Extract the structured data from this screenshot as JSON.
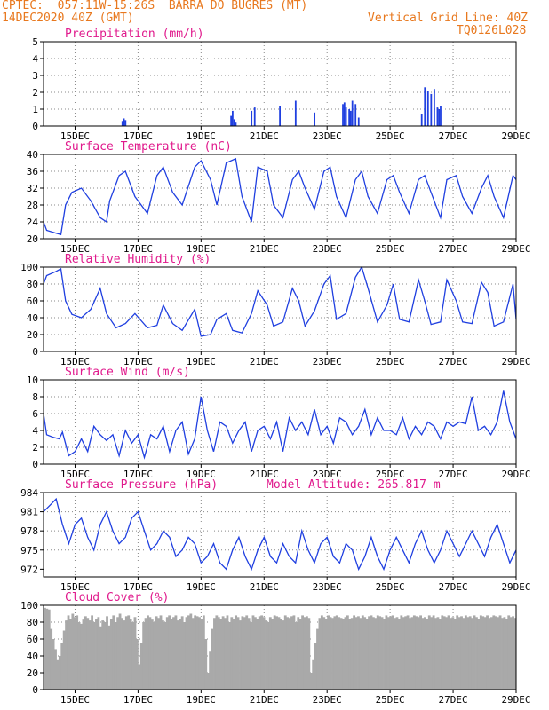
{
  "header": {
    "line1": "CPTEC:  057:11W-15:26S  BARRA DO BUGRES (MT)",
    "line2_left": "14DEC2020 40Z (GMT)",
    "line2_right": "Vertical Grid Line: 40Z",
    "line3_right": "TQ0126L028"
  },
  "colors": {
    "header": "#e8781e",
    "title": "#e0198c",
    "series": "#1f3fe0",
    "cloud": "#a9a9a9",
    "grid": "#888888"
  },
  "x_axis": {
    "range": [
      14.0,
      29.0
    ],
    "tick_positions": [
      15,
      17,
      19,
      21,
      23,
      25,
      27,
      29
    ],
    "tick_labels": [
      "15DEC",
      "17DEC",
      "19DEC",
      "21DEC",
      "23DEC",
      "25DEC",
      "27DEC",
      "29DEC"
    ]
  },
  "chart_data": [
    {
      "type": "bar",
      "title": "Precipitation (mm/h)",
      "ylim": [
        0,
        5
      ],
      "yticks": [
        0,
        1,
        2,
        3,
        4,
        5
      ],
      "values": [
        [
          16.5,
          0.3
        ],
        [
          16.55,
          0.45
        ],
        [
          16.6,
          0.35
        ],
        [
          19.95,
          0.6
        ],
        [
          20.0,
          0.9
        ],
        [
          20.05,
          0.4
        ],
        [
          20.1,
          0.2
        ],
        [
          20.6,
          0.9
        ],
        [
          20.7,
          1.1
        ],
        [
          21.5,
          1.2
        ],
        [
          22.0,
          1.5
        ],
        [
          22.6,
          0.8
        ],
        [
          23.5,
          1.3
        ],
        [
          23.55,
          1.4
        ],
        [
          23.6,
          1.1
        ],
        [
          23.7,
          1.0
        ],
        [
          23.75,
          0.9
        ],
        [
          23.8,
          1.5
        ],
        [
          23.9,
          1.3
        ],
        [
          24.0,
          0.5
        ],
        [
          26.0,
          0.7
        ],
        [
          26.1,
          2.3
        ],
        [
          26.2,
          2.1
        ],
        [
          26.3,
          1.9
        ],
        [
          26.4,
          2.2
        ],
        [
          26.5,
          1.1
        ],
        [
          26.55,
          1.0
        ],
        [
          26.6,
          1.2
        ]
      ]
    },
    {
      "type": "line",
      "title": "Surface Temperature (nC)",
      "ylim": [
        20,
        40
      ],
      "yticks": [
        20,
        24,
        28,
        32,
        36,
        40
      ],
      "x": [
        14.0,
        14.1,
        14.4,
        14.55,
        14.7,
        14.9,
        15.2,
        15.5,
        15.8,
        16.0,
        16.1,
        16.4,
        16.6,
        16.9,
        17.3,
        17.6,
        17.8,
        18.1,
        18.4,
        18.8,
        19.0,
        19.3,
        19.5,
        19.8,
        20.1,
        20.3,
        20.6,
        20.8,
        21.1,
        21.3,
        21.6,
        21.9,
        22.1,
        22.3,
        22.6,
        22.9,
        23.1,
        23.3,
        23.6,
        23.9,
        24.1,
        24.3,
        24.6,
        24.9,
        25.1,
        25.3,
        25.6,
        25.9,
        26.1,
        26.3,
        26.6,
        26.8,
        27.1,
        27.3,
        27.6,
        27.9,
        28.1,
        28.3,
        28.6,
        28.9,
        29.0
      ],
      "y": [
        24,
        22,
        21.3,
        21,
        28,
        31,
        32,
        29,
        25,
        24,
        29,
        35,
        36,
        30,
        26,
        35,
        37,
        31,
        28,
        37,
        38.5,
        34,
        28,
        38,
        39,
        30,
        24,
        37,
        36,
        28,
        25,
        34,
        36,
        32,
        27,
        36,
        37,
        30,
        25,
        34,
        36,
        30,
        26,
        34,
        35,
        31,
        26,
        34,
        35,
        31,
        25,
        34,
        35,
        30,
        26,
        32,
        35,
        30,
        25,
        35,
        34
      ]
    },
    {
      "type": "line",
      "title": "Relative Humidity (%)",
      "ylim": [
        0,
        100
      ],
      "yticks": [
        0,
        20,
        40,
        60,
        80,
        100
      ],
      "x": [
        14.0,
        14.1,
        14.4,
        14.55,
        14.7,
        14.9,
        15.2,
        15.5,
        15.8,
        16.0,
        16.3,
        16.6,
        16.9,
        17.3,
        17.6,
        17.8,
        18.1,
        18.4,
        18.8,
        19.0,
        19.3,
        19.5,
        19.8,
        20.0,
        20.3,
        20.6,
        20.8,
        21.1,
        21.3,
        21.6,
        21.9,
        22.1,
        22.3,
        22.6,
        22.9,
        23.1,
        23.3,
        23.6,
        23.9,
        24.1,
        24.3,
        24.6,
        24.9,
        25.1,
        25.3,
        25.6,
        25.9,
        26.1,
        26.3,
        26.6,
        26.8,
        27.1,
        27.3,
        27.6,
        27.9,
        28.1,
        28.3,
        28.6,
        28.9,
        29.0
      ],
      "y": [
        80,
        90,
        95,
        98,
        60,
        44,
        40,
        50,
        75,
        45,
        28,
        33,
        45,
        28,
        31,
        55,
        33,
        25,
        50,
        18,
        20,
        38,
        45,
        25,
        22,
        45,
        72,
        55,
        30,
        35,
        75,
        60,
        30,
        48,
        80,
        90,
        38,
        45,
        88,
        100,
        75,
        35,
        55,
        80,
        38,
        35,
        85,
        60,
        32,
        35,
        85,
        60,
        35,
        33,
        82,
        70,
        30,
        35,
        80,
        38
      ]
    },
    {
      "type": "line",
      "title": "Surface Wind (m/s)",
      "ylim": [
        0,
        10
      ],
      "yticks": [
        0,
        2,
        4,
        6,
        8,
        10
      ],
      "x": [
        14.0,
        14.1,
        14.3,
        14.5,
        14.6,
        14.8,
        15.0,
        15.2,
        15.4,
        15.6,
        15.8,
        16.0,
        16.2,
        16.4,
        16.6,
        16.8,
        17.0,
        17.2,
        17.4,
        17.6,
        17.8,
        18.0,
        18.2,
        18.4,
        18.6,
        18.8,
        19.0,
        19.2,
        19.4,
        19.6,
        19.8,
        20.0,
        20.2,
        20.4,
        20.6,
        20.8,
        21.0,
        21.2,
        21.4,
        21.6,
        21.8,
        22.0,
        22.2,
        22.4,
        22.6,
        22.8,
        23.0,
        23.2,
        23.4,
        23.6,
        23.8,
        24.0,
        24.2,
        24.4,
        24.6,
        24.8,
        25.0,
        25.2,
        25.4,
        25.6,
        25.8,
        26.0,
        26.2,
        26.4,
        26.6,
        26.8,
        27.0,
        27.2,
        27.4,
        27.6,
        27.8,
        28.0,
        28.2,
        28.4,
        28.6,
        28.8,
        29.0
      ],
      "y": [
        6.0,
        3.5,
        3.2,
        3.0,
        3.8,
        1.0,
        1.5,
        3.0,
        1.5,
        4.5,
        3.5,
        2.8,
        3.5,
        1.0,
        4.0,
        2.5,
        3.5,
        0.8,
        3.5,
        3.0,
        4.5,
        1.5,
        4.0,
        5.0,
        1.2,
        3.0,
        8.0,
        4.0,
        1.5,
        5.0,
        4.5,
        2.5,
        4.0,
        5.0,
        1.5,
        4.0,
        4.5,
        3.0,
        5.0,
        1.5,
        5.5,
        4.0,
        5.0,
        3.5,
        6.5,
        3.5,
        4.5,
        2.5,
        5.5,
        5.0,
        3.5,
        4.5,
        6.5,
        3.5,
        5.5,
        4.0,
        4.0,
        3.5,
        5.5,
        3.0,
        4.5,
        3.5,
        5.0,
        4.5,
        3.0,
        5.0,
        4.5,
        5.0,
        4.8,
        8.0,
        4.0,
        4.5,
        3.5,
        5.0,
        8.7,
        5.0,
        3.0
      ]
    },
    {
      "type": "line",
      "title": "Surface Pressure (hPa)",
      "annotation": "Model Altitude: 265.817 m",
      "ylim": [
        970.8,
        984
      ],
      "yticks": [
        972,
        975,
        978,
        981,
        984
      ],
      "x": [
        14.0,
        14.2,
        14.4,
        14.6,
        14.8,
        15.0,
        15.2,
        15.4,
        15.6,
        15.8,
        16.0,
        16.2,
        16.4,
        16.6,
        16.8,
        17.0,
        17.2,
        17.4,
        17.6,
        17.8,
        18.0,
        18.2,
        18.4,
        18.6,
        18.8,
        19.0,
        19.2,
        19.4,
        19.6,
        19.8,
        20.0,
        20.2,
        20.4,
        20.6,
        20.8,
        21.0,
        21.2,
        21.4,
        21.6,
        21.8,
        22.0,
        22.2,
        22.4,
        22.6,
        22.8,
        23.0,
        23.2,
        23.4,
        23.6,
        23.8,
        24.0,
        24.2,
        24.4,
        24.6,
        24.8,
        25.0,
        25.2,
        25.4,
        25.6,
        25.8,
        26.0,
        26.2,
        26.4,
        26.6,
        26.8,
        27.0,
        27.2,
        27.4,
        27.6,
        27.8,
        28.0,
        28.2,
        28.4,
        28.6,
        28.8,
        29.0
      ],
      "y": [
        981,
        982,
        983,
        979,
        976,
        979,
        980,
        977,
        975,
        979,
        981,
        978,
        976,
        977,
        980,
        981,
        978,
        975,
        976,
        978,
        977,
        974,
        975,
        977,
        976,
        973,
        974,
        976,
        973,
        972,
        975,
        977,
        974,
        972,
        975,
        977,
        974,
        973,
        976,
        974,
        973,
        978,
        975,
        973,
        976,
        977,
        974,
        973,
        976,
        975,
        972,
        974,
        977,
        974,
        972,
        975,
        977,
        975,
        973,
        976,
        978,
        975,
        973,
        975,
        978,
        976,
        974,
        976,
        978,
        976,
        974,
        977,
        979,
        976,
        973,
        975
      ]
    },
    {
      "type": "bar",
      "title": "Cloud Cover (%)",
      "ylim": [
        0,
        100
      ],
      "yticks": [
        0,
        20,
        40,
        60,
        80,
        100
      ],
      "step": 0.0833,
      "values": [
        97,
        96,
        95,
        72,
        60,
        48,
        35,
        40,
        55,
        70,
        82,
        88,
        84,
        90,
        86,
        88,
        80,
        78,
        83,
        87,
        85,
        82,
        88,
        80,
        84,
        86,
        75,
        82,
        80,
        87,
        76,
        84,
        88,
        80,
        86,
        90,
        85,
        82,
        87,
        88,
        84,
        80,
        86,
        60,
        30,
        55,
        80,
        85,
        88,
        86,
        83,
        80,
        87,
        85,
        88,
        82,
        80,
        86,
        88,
        84,
        86,
        88,
        82,
        84,
        87,
        80,
        86,
        88,
        90,
        85,
        88,
        87,
        86,
        84,
        88,
        60,
        20,
        45,
        72,
        85,
        88,
        86,
        84,
        87,
        85,
        88,
        80,
        86,
        84,
        88,
        86,
        82,
        87,
        86,
        88,
        85,
        80,
        88,
        86,
        84,
        87,
        88,
        86,
        82,
        80,
        86,
        84,
        88,
        87,
        86,
        84,
        82,
        88,
        86,
        85,
        87,
        88,
        80,
        86,
        84,
        88,
        86,
        87,
        85,
        20,
        35,
        55,
        72,
        85,
        88,
        86,
        84,
        88,
        86,
        85,
        87,
        88,
        86,
        85,
        84,
        86,
        88,
        84,
        85,
        88,
        86,
        87,
        85,
        88,
        86,
        84,
        87,
        88,
        86,
        85,
        88,
        87,
        86,
        84,
        88,
        86,
        87,
        88,
        85,
        86,
        84,
        88,
        86,
        87,
        88,
        85,
        86,
        88,
        87,
        86,
        88,
        85,
        86,
        84,
        88,
        86,
        88,
        85,
        86,
        84,
        88,
        87,
        86,
        88,
        85,
        86,
        84,
        88,
        86,
        87,
        85,
        88,
        86,
        87,
        85,
        88,
        86,
        84,
        88,
        87,
        86,
        88,
        85,
        86,
        88,
        87,
        86,
        88,
        85,
        86,
        84,
        88,
        86,
        87,
        85
      ]
    }
  ]
}
